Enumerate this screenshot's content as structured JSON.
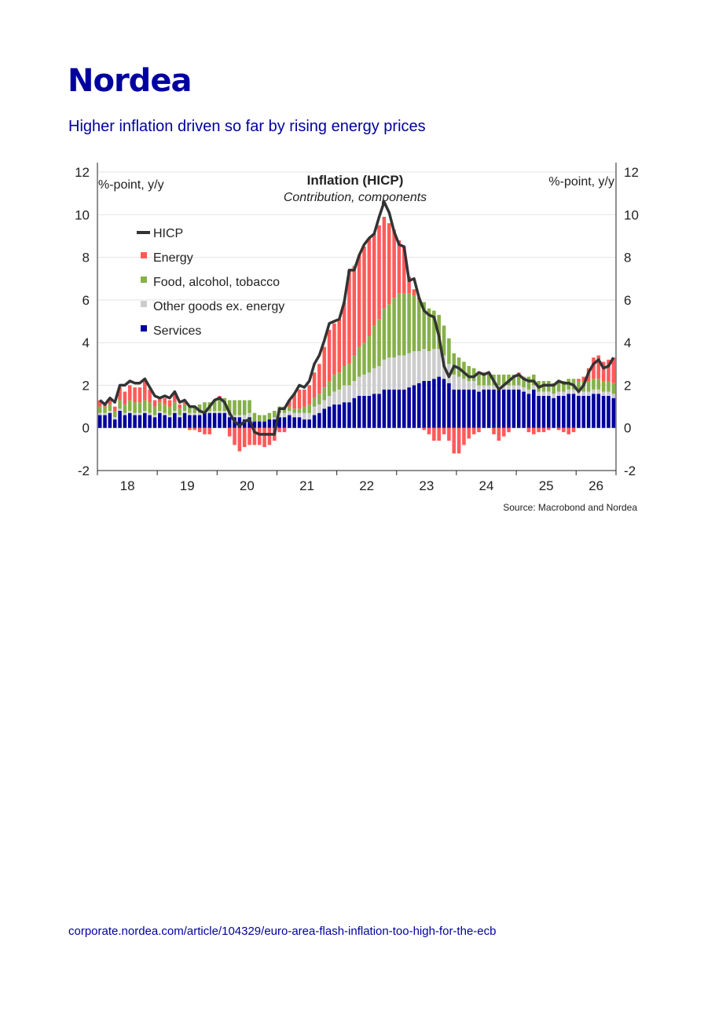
{
  "header": {
    "logo": "Nordea",
    "subtitle": "Higher inflation driven so far by rising energy prices"
  },
  "footer": {
    "link": "corporate.nordea.com/article/104329/euro-area-flash-inflation-too-high-for-the-ecb"
  },
  "colors": {
    "brand": "#0000a0",
    "energy": "#ff5a5a",
    "food": "#86b04a",
    "other": "#cccccc",
    "services": "#00009c",
    "hicp": "#333333"
  },
  "chart_data": {
    "type": "bar",
    "stacked": true,
    "title": "Inflation (HICP)",
    "subtitle": "Contribution, components",
    "ylabel_left": "%-point, y/y",
    "ylabel_right": "%-point, y/y",
    "ylim": [
      -2,
      12
    ],
    "yticks": [
      -2,
      0,
      2,
      4,
      6,
      8,
      10,
      12
    ],
    "year_labels": [
      "18",
      "19",
      "20",
      "21",
      "22",
      "23",
      "24",
      "25",
      "26"
    ],
    "source": "Source: Macrobond and Nordea",
    "legend_position": "top-left",
    "x_start": "2018-01",
    "x_end": "2026-03",
    "hicp_line": {
      "name": "HICP",
      "values": [
        1.3,
        1.1,
        1.4,
        1.2,
        2.0,
        2.0,
        2.2,
        2.1,
        2.1,
        2.3,
        1.9,
        1.5,
        1.4,
        1.5,
        1.4,
        1.7,
        1.2,
        1.3,
        1.0,
        1.0,
        0.8,
        0.7,
        1.0,
        1.3,
        1.4,
        1.2,
        0.7,
        0.3,
        0.1,
        0.3,
        0.4,
        -0.2,
        -0.3,
        -0.3,
        -0.3,
        -0.3,
        0.9,
        0.9,
        1.3,
        1.6,
        2.0,
        1.9,
        2.2,
        3.0,
        3.4,
        4.1,
        4.9,
        5.0,
        5.1,
        5.9,
        7.4,
        7.4,
        8.1,
        8.6,
        8.9,
        9.1,
        9.9,
        10.6,
        10.1,
        9.2,
        8.6,
        8.5,
        6.9,
        7.0,
        6.1,
        5.5,
        5.3,
        5.2,
        4.3,
        2.9,
        2.4,
        2.9,
        2.8,
        2.6,
        2.4,
        2.4,
        2.6,
        2.5,
        2.6,
        2.2,
        1.8,
        2.0,
        2.2,
        2.4,
        2.5,
        2.3,
        2.2,
        2.2,
        1.9,
        2.0,
        2.0,
        2.0,
        2.2,
        2.1,
        2.1,
        2.0,
        1.7,
        2.0,
        2.6,
        3.0,
        3.2,
        2.8,
        2.9,
        3.3
      ]
    },
    "series": [
      {
        "name": "Energy",
        "values": [
          0.3,
          0.2,
          0.2,
          0.2,
          0.6,
          0.6,
          0.7,
          0.7,
          0.7,
          0.9,
          0.6,
          0.3,
          0.2,
          0.3,
          0.3,
          0.4,
          0.2,
          0.1,
          -0.1,
          -0.1,
          -0.2,
          -0.3,
          -0.3,
          0.0,
          0.1,
          0.0,
          -0.4,
          -0.8,
          -1.1,
          -0.9,
          -0.8,
          -0.8,
          -0.8,
          -0.9,
          -0.8,
          -0.6,
          -0.2,
          -0.2,
          0.3,
          0.7,
          0.9,
          0.8,
          0.9,
          1.2,
          1.4,
          1.9,
          2.4,
          2.4,
          2.5,
          3.0,
          4.4,
          4.2,
          4.3,
          4.5,
          4.6,
          4.3,
          4.4,
          4.3,
          3.8,
          3.2,
          2.5,
          2.2,
          0.8,
          0.3,
          0.1,
          -0.1,
          -0.3,
          -0.6,
          -0.6,
          -0.3,
          -0.6,
          -1.2,
          -1.2,
          -0.8,
          -0.5,
          -0.3,
          -0.2,
          0.1,
          0.0,
          -0.3,
          -0.6,
          -0.4,
          -0.2,
          0.0,
          0.1,
          0.0,
          -0.2,
          -0.3,
          -0.2,
          -0.2,
          -0.1,
          0.0,
          -0.1,
          -0.2,
          -0.3,
          -0.2,
          0.1,
          0.2,
          0.6,
          1.0,
          1.1,
          0.9,
          1.0,
          1.2
        ]
      },
      {
        "name": "Food, alcohol, tobacco",
        "values": [
          0.3,
          0.3,
          0.3,
          0.3,
          0.4,
          0.4,
          0.5,
          0.5,
          0.5,
          0.5,
          0.5,
          0.4,
          0.4,
          0.4,
          0.4,
          0.4,
          0.3,
          0.3,
          0.3,
          0.3,
          0.4,
          0.4,
          0.4,
          0.5,
          0.6,
          0.6,
          0.7,
          0.7,
          0.7,
          0.7,
          0.6,
          0.4,
          0.3,
          0.3,
          0.3,
          0.3,
          0.3,
          0.3,
          0.2,
          0.2,
          0.2,
          0.3,
          0.4,
          0.4,
          0.5,
          0.6,
          0.7,
          0.8,
          0.8,
          0.9,
          1.0,
          1.2,
          1.4,
          1.5,
          1.7,
          2.0,
          2.2,
          2.4,
          2.5,
          2.8,
          2.9,
          2.9,
          2.8,
          2.6,
          2.4,
          2.2,
          2.0,
          1.8,
          1.6,
          1.4,
          1.2,
          1.0,
          0.9,
          0.8,
          0.7,
          0.6,
          0.5,
          0.5,
          0.5,
          0.5,
          0.5,
          0.5,
          0.5,
          0.5,
          0.5,
          0.5,
          0.6,
          0.5,
          0.5,
          0.5,
          0.5,
          0.5,
          0.5,
          0.5,
          0.5,
          0.5,
          0.5,
          0.5,
          0.5,
          0.5,
          0.5,
          0.5,
          0.5,
          0.5
        ]
      },
      {
        "name": "Other goods ex. energy",
        "values": [
          0.1,
          0.1,
          0.1,
          0.1,
          0.1,
          0.1,
          0.1,
          0.1,
          0.1,
          0.1,
          0.1,
          0.1,
          0.1,
          0.1,
          0.1,
          0.1,
          0.1,
          0.1,
          0.1,
          0.1,
          0.1,
          0.1,
          0.1,
          0.1,
          0.1,
          0.1,
          0.1,
          0.1,
          0.1,
          0.2,
          0.2,
          0.0,
          0.0,
          0.0,
          0.0,
          0.1,
          0.2,
          0.2,
          0.2,
          0.2,
          0.2,
          0.3,
          0.3,
          0.4,
          0.4,
          0.4,
          0.5,
          0.6,
          0.7,
          0.8,
          0.8,
          0.8,
          0.9,
          1.0,
          1.1,
          1.2,
          1.3,
          1.4,
          1.5,
          1.5,
          1.6,
          1.6,
          1.6,
          1.6,
          1.5,
          1.5,
          1.4,
          1.4,
          1.3,
          1.1,
          0.9,
          0.7,
          0.6,
          0.5,
          0.4,
          0.4,
          0.3,
          0.2,
          0.2,
          0.2,
          0.2,
          0.2,
          0.2,
          0.2,
          0.2,
          0.2,
          0.2,
          0.2,
          0.2,
          0.2,
          0.2,
          0.2,
          0.2,
          0.2,
          0.2,
          0.2,
          0.2,
          0.2,
          0.2,
          0.2,
          0.2,
          0.2,
          0.2,
          0.2
        ]
      },
      {
        "name": "Services",
        "values": [
          0.6,
          0.6,
          0.7,
          0.4,
          0.8,
          0.6,
          0.7,
          0.6,
          0.6,
          0.7,
          0.6,
          0.5,
          0.7,
          0.6,
          0.5,
          0.7,
          0.5,
          0.7,
          0.6,
          0.6,
          0.6,
          0.7,
          0.7,
          0.7,
          0.7,
          0.7,
          0.5,
          0.5,
          0.5,
          0.4,
          0.5,
          0.3,
          0.3,
          0.3,
          0.4,
          0.4,
          0.5,
          0.5,
          0.6,
          0.5,
          0.5,
          0.4,
          0.4,
          0.6,
          0.7,
          0.9,
          1.0,
          1.1,
          1.1,
          1.2,
          1.2,
          1.4,
          1.5,
          1.5,
          1.5,
          1.6,
          1.6,
          1.8,
          1.8,
          1.8,
          1.8,
          1.8,
          1.9,
          2.0,
          2.1,
          2.2,
          2.2,
          2.3,
          2.4,
          2.3,
          2.1,
          1.8,
          1.8,
          1.8,
          1.8,
          1.8,
          1.7,
          1.8,
          1.8,
          1.8,
          1.8,
          1.8,
          1.8,
          1.8,
          1.8,
          1.7,
          1.6,
          1.8,
          1.5,
          1.5,
          1.5,
          1.4,
          1.5,
          1.5,
          1.6,
          1.6,
          1.5,
          1.5,
          1.5,
          1.6,
          1.6,
          1.5,
          1.5,
          1.4
        ]
      }
    ]
  }
}
